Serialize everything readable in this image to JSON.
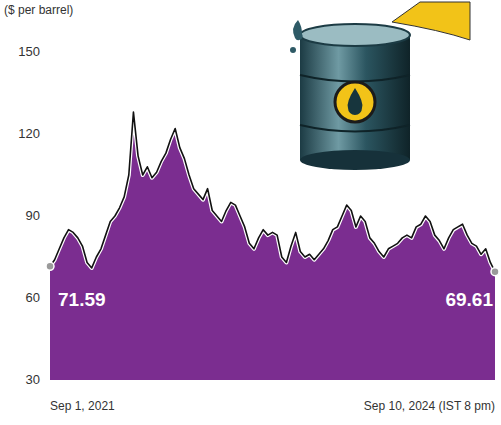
{
  "chart_data": {
    "type": "area",
    "ylabel": "($ per barrel)",
    "categories": [
      "Sep 1, 2021",
      null,
      null,
      null,
      null,
      null,
      null,
      null,
      null,
      null,
      null,
      null,
      null,
      null,
      null,
      null,
      null,
      null,
      null,
      null,
      null,
      null,
      null,
      null,
      null,
      null,
      null,
      null,
      null,
      null,
      null,
      null,
      null,
      null,
      null,
      null,
      null,
      null,
      null,
      null,
      null,
      null,
      null,
      null,
      null,
      null,
      null,
      null,
      null,
      null,
      null,
      null,
      null,
      null,
      null,
      null,
      null,
      null,
      null,
      null,
      null,
      null,
      null,
      null,
      null,
      null,
      null,
      null,
      null,
      null,
      null,
      null,
      null,
      null,
      null,
      null,
      null,
      null,
      null,
      null,
      null,
      null,
      null,
      null,
      null,
      null,
      null,
      null,
      null,
      null,
      null,
      null,
      null,
      null,
      null,
      null,
      "Sep 10, 2024 (IST 8 pm)"
    ],
    "values": [
      71.59,
      74,
      78,
      82,
      85,
      84,
      82,
      79,
      73,
      71,
      75,
      78,
      83,
      88,
      90,
      93,
      97,
      105,
      128,
      112,
      105,
      108,
      104,
      106,
      110,
      113,
      118,
      122,
      115,
      111,
      105,
      100,
      98,
      96,
      100,
      92,
      90,
      88,
      92,
      95,
      94,
      90,
      86,
      80,
      78,
      82,
      85,
      83,
      84,
      83,
      75,
      73,
      79,
      84,
      77,
      75,
      76,
      74,
      76,
      78,
      81,
      85,
      86,
      90,
      94,
      92,
      86,
      90,
      88,
      82,
      80,
      77,
      75,
      78,
      79,
      80,
      82,
      83,
      82,
      86,
      87,
      90,
      88,
      83,
      81,
      78,
      82,
      85,
      86,
      87,
      83,
      80,
      79,
      76,
      78,
      73,
      69.61
    ],
    "color": "#7b2d90",
    "ylim": [
      30,
      150
    ],
    "yticks": [
      30,
      60,
      90,
      120,
      150
    ],
    "grid": false
  }
}
